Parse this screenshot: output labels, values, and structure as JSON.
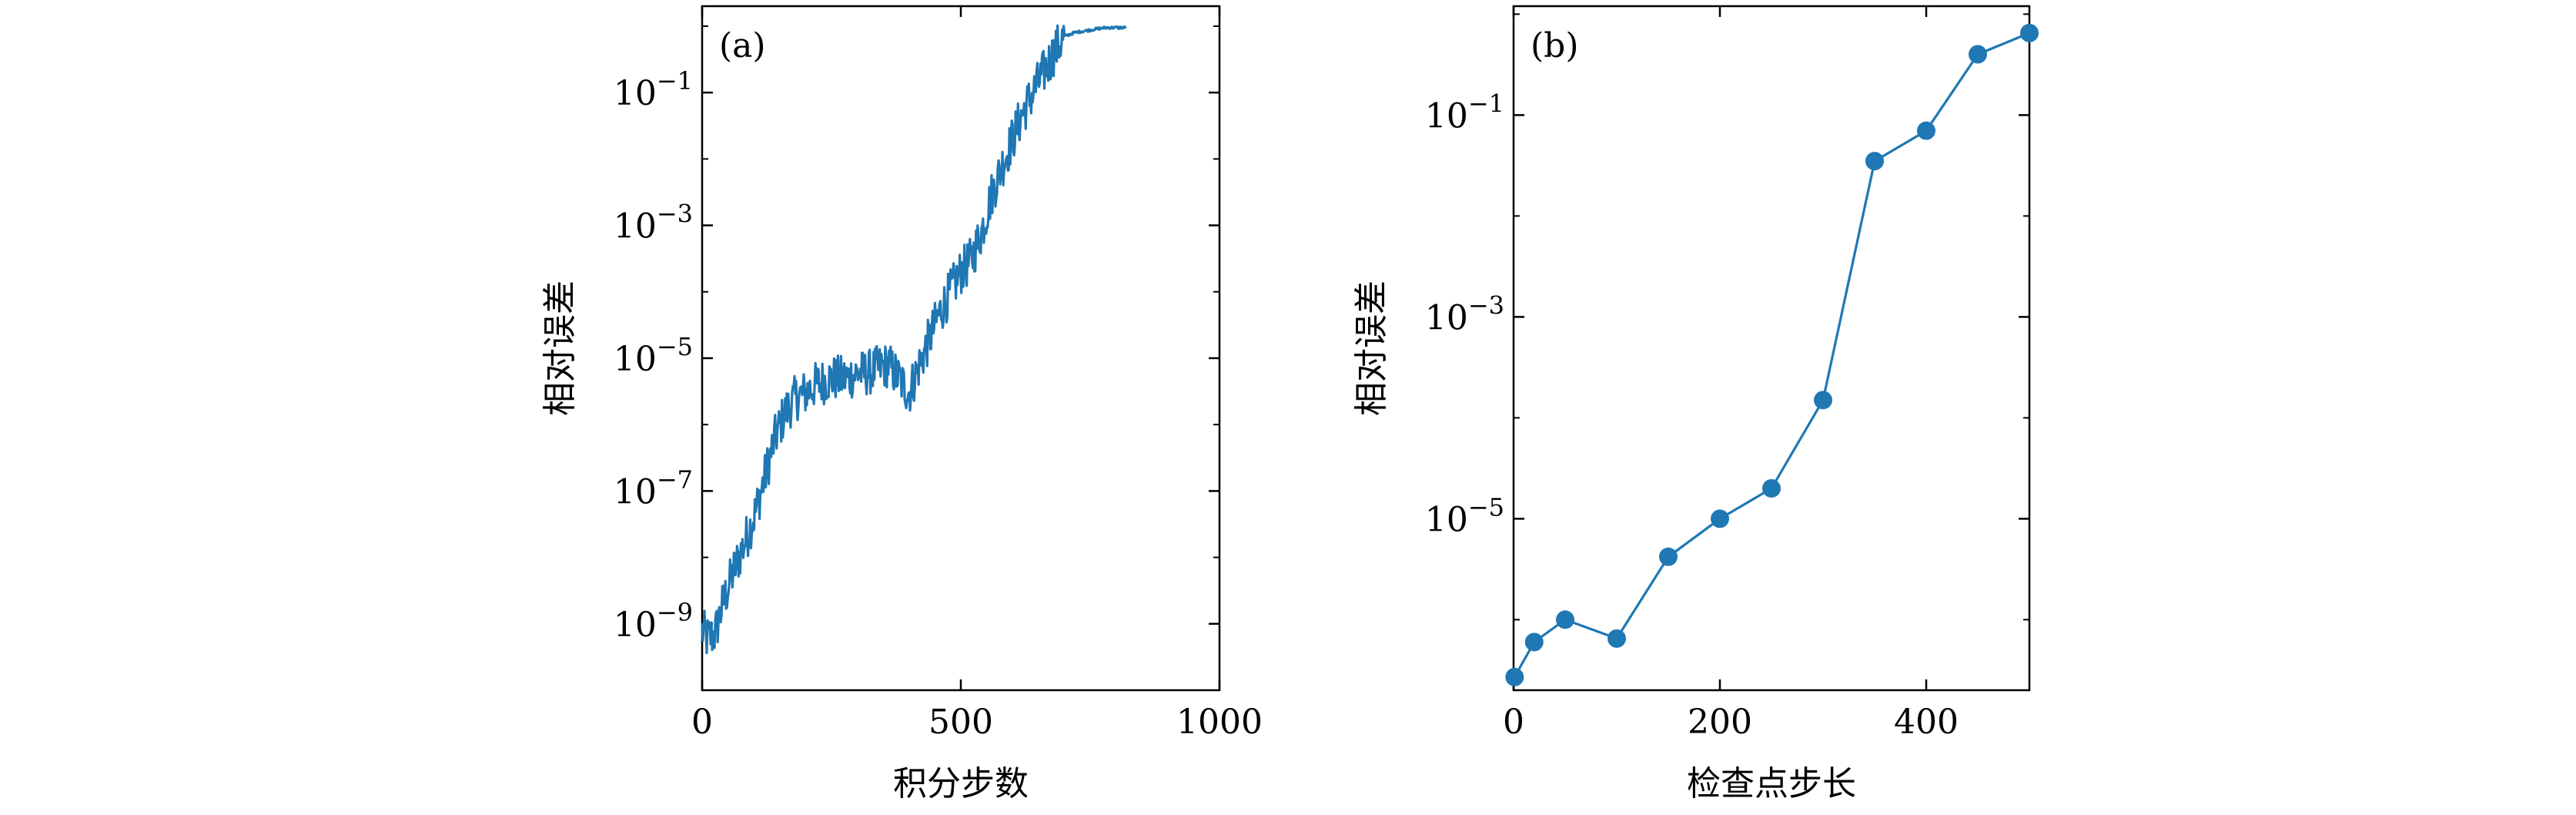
{
  "colors": {
    "series": "#1f77b4",
    "axes": "#000000",
    "background": "#ffffff"
  },
  "chart_data": [
    {
      "type": "line",
      "panel_label": "(a)",
      "xlabel": "积分步数",
      "ylabel": "相对误差",
      "yscale": "log",
      "xlim": [
        0,
        1000
      ],
      "ylim": [
        1e-10,
        2.0
      ],
      "xticks": [
        0,
        500,
        1000
      ],
      "xtick_labels": [
        "0",
        "500",
        "1000"
      ],
      "yticks_exp": [
        -1,
        -3,
        -5,
        -7,
        -9
      ],
      "grid": false,
      "legend": "none",
      "series": [
        {
          "x": [
            0,
            10,
            25,
            40,
            60,
            80,
            100,
            120,
            140,
            160,
            180,
            200,
            220,
            250,
            280,
            300,
            320,
            340,
            360,
            380,
            400,
            420,
            440,
            460,
            480,
            500,
            520,
            540,
            560,
            580,
            600,
            620,
            640,
            660,
            680,
            700,
            720,
            740,
            760,
            780,
            800,
            820
          ],
          "y": [
            8e-10,
            6e-10,
            7e-10,
            2e-09,
            6e-09,
            1.5e-08,
            4e-08,
            1.5e-07,
            6e-07,
            1.5e-06,
            2.5e-06,
            3e-06,
            4e-06,
            5e-06,
            5e-06,
            6e-06,
            6e-06,
            7e-06,
            8e-06,
            5e-06,
            3e-06,
            8e-06,
            2e-05,
            5e-05,
            0.0001,
            0.0002,
            0.0003,
            0.0008,
            0.003,
            0.008,
            0.02,
            0.05,
            0.1,
            0.2,
            0.4,
            0.7,
            0.8,
            0.85,
            0.9,
            0.95,
            0.95,
            0.95
          ]
        }
      ]
    },
    {
      "type": "line",
      "panel_label": "(b)",
      "xlabel": "检查点步长",
      "ylabel": "相对误差",
      "yscale": "log",
      "xlim": [
        0,
        500
      ],
      "ylim": [
        2e-07,
        1.2
      ],
      "xticks": [
        0,
        200,
        400
      ],
      "xtick_labels": [
        "0",
        "200",
        "400"
      ],
      "yticks_exp": [
        -1,
        -3,
        -5
      ],
      "grid": false,
      "legend": "none",
      "series": [
        {
          "x": [
            1,
            20,
            50,
            100,
            150,
            200,
            250,
            300,
            350,
            400,
            450,
            500
          ],
          "y": [
            2.7e-07,
            6e-07,
            1e-06,
            6.5e-07,
            4.2e-06,
            1e-05,
            2e-05,
            0.00015,
            0.035,
            0.07,
            0.4,
            0.65
          ]
        }
      ]
    }
  ]
}
